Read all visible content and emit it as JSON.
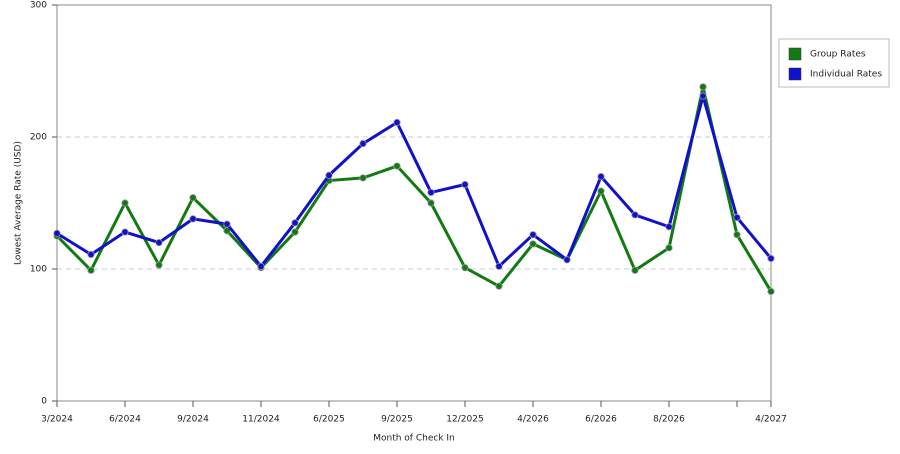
{
  "chart_data": {
    "type": "line",
    "x_label": "Month of Check In",
    "y_label": "Lowest Average Rate (USD)",
    "categories": [
      "3/2024",
      null,
      "6/2024",
      null,
      "9/2024",
      null,
      "11/2024",
      null,
      "6/2025",
      null,
      "9/2025",
      null,
      "12/2025",
      null,
      "4/2026",
      null,
      "6/2026",
      null,
      "8/2026",
      null,
      null,
      "4/2027"
    ],
    "series": [
      {
        "name": "Group Rates",
        "color": "#137a13",
        "values": [
          125,
          99,
          150,
          103,
          154,
          129,
          101,
          128,
          167,
          169,
          178,
          150,
          101,
          87,
          119,
          107,
          159,
          99,
          116,
          238,
          126,
          83
        ]
      },
      {
        "name": "Individual Rates",
        "color": "#1111cc",
        "values": [
          127,
          111,
          128,
          120,
          138,
          134,
          102,
          135,
          171,
          195,
          211,
          158,
          164,
          102,
          126,
          107,
          170,
          141,
          132,
          231,
          139,
          108
        ]
      }
    ],
    "ylim": [
      0,
      300
    ],
    "yticks": [
      0,
      100,
      200,
      300
    ],
    "grid": true,
    "legend": "right"
  }
}
